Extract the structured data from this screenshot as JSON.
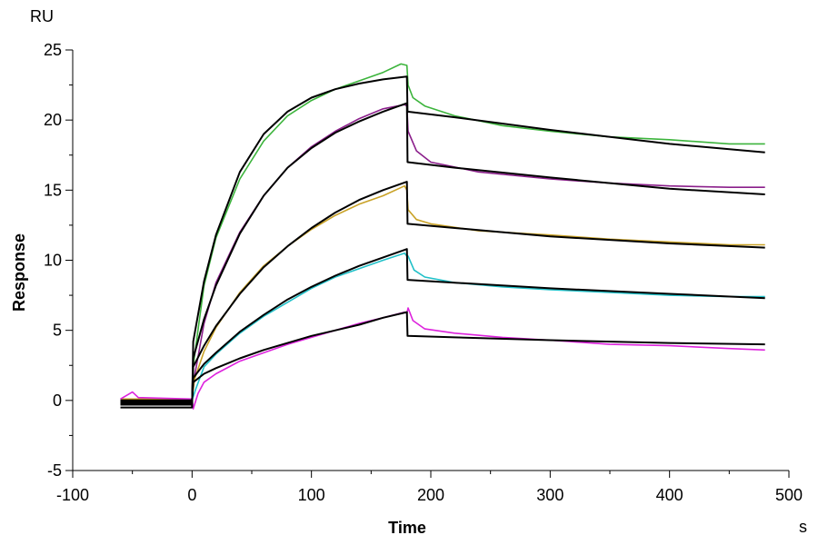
{
  "chart_data": {
    "type": "line",
    "title": "",
    "xlabel": "Time",
    "ylabel": "Response",
    "x_unit": "s",
    "y_unit": "RU",
    "xlim": [
      -100,
      500
    ],
    "ylim": [
      -5,
      25
    ],
    "x_ticks": [
      -100,
      0,
      100,
      200,
      300,
      400,
      500
    ],
    "y_ticks": [
      -5,
      0,
      5,
      10,
      15,
      20,
      25
    ],
    "x_tick_labels": [
      "-100",
      "0",
      "100",
      "200",
      "300",
      "400",
      "500"
    ],
    "y_tick_labels": [
      "-5",
      "0",
      "5",
      "10",
      "15",
      "20",
      "25"
    ],
    "grid": false,
    "legend": "none",
    "association_end_s": 180,
    "series": [
      {
        "color": "#3cb43c",
        "style": "measured",
        "points": [
          [
            -60,
            -0.2
          ],
          [
            0,
            -0.2
          ],
          [
            1,
            2.5
          ],
          [
            10,
            8.2
          ],
          [
            20,
            11.6
          ],
          [
            40,
            15.8
          ],
          [
            60,
            18.5
          ],
          [
            80,
            20.3
          ],
          [
            100,
            21.4
          ],
          [
            120,
            22.2
          ],
          [
            140,
            22.8
          ],
          [
            160,
            23.4
          ],
          [
            175,
            24.0
          ],
          [
            180,
            23.9
          ],
          [
            181,
            22.5
          ],
          [
            185,
            21.6
          ],
          [
            195,
            21.0
          ],
          [
            220,
            20.3
          ],
          [
            260,
            19.6
          ],
          [
            300,
            19.2
          ],
          [
            350,
            18.8
          ],
          [
            400,
            18.6
          ],
          [
            450,
            18.3
          ],
          [
            480,
            18.3
          ]
        ]
      },
      {
        "color": "#8b1f8b",
        "style": "measured",
        "points": [
          [
            -60,
            0.0
          ],
          [
            0,
            0.0
          ],
          [
            1,
            1.2
          ],
          [
            10,
            5.5
          ],
          [
            20,
            8.4
          ],
          [
            40,
            12.0
          ],
          [
            60,
            14.6
          ],
          [
            80,
            16.6
          ],
          [
            100,
            18.1
          ],
          [
            120,
            19.2
          ],
          [
            140,
            20.1
          ],
          [
            160,
            20.8
          ],
          [
            178,
            21.1
          ],
          [
            180,
            21.0
          ],
          [
            181,
            19.2
          ],
          [
            188,
            17.8
          ],
          [
            200,
            17.0
          ],
          [
            240,
            16.3
          ],
          [
            300,
            15.8
          ],
          [
            350,
            15.5
          ],
          [
            400,
            15.3
          ],
          [
            450,
            15.2
          ],
          [
            480,
            15.2
          ]
        ]
      },
      {
        "color": "#c9a227",
        "style": "measured",
        "points": [
          [
            -60,
            0.1
          ],
          [
            0,
            0.1
          ],
          [
            2,
            1.5
          ],
          [
            10,
            3.5
          ],
          [
            20,
            5.2
          ],
          [
            40,
            7.7
          ],
          [
            60,
            9.6
          ],
          [
            80,
            11.0
          ],
          [
            100,
            12.2
          ],
          [
            120,
            13.2
          ],
          [
            140,
            14.0
          ],
          [
            160,
            14.6
          ],
          [
            178,
            15.3
          ],
          [
            180,
            15.0
          ],
          [
            181,
            13.6
          ],
          [
            188,
            12.9
          ],
          [
            200,
            12.6
          ],
          [
            240,
            12.1
          ],
          [
            300,
            11.8
          ],
          [
            350,
            11.5
          ],
          [
            400,
            11.3
          ],
          [
            450,
            11.1
          ],
          [
            480,
            11.1
          ]
        ]
      },
      {
        "color": "#21c0c8",
        "style": "measured",
        "points": [
          [
            -60,
            0.0
          ],
          [
            0,
            0.0
          ],
          [
            3,
            0.8
          ],
          [
            10,
            2.4
          ],
          [
            20,
            3.3
          ],
          [
            40,
            4.8
          ],
          [
            60,
            6.0
          ],
          [
            80,
            7.0
          ],
          [
            100,
            8.0
          ],
          [
            120,
            8.8
          ],
          [
            140,
            9.4
          ],
          [
            160,
            10.0
          ],
          [
            178,
            10.5
          ],
          [
            180,
            10.3
          ],
          [
            181,
            10.3
          ],
          [
            186,
            9.3
          ],
          [
            195,
            8.8
          ],
          [
            220,
            8.4
          ],
          [
            260,
            8.1
          ],
          [
            300,
            7.9
          ],
          [
            350,
            7.7
          ],
          [
            400,
            7.5
          ],
          [
            450,
            7.4
          ],
          [
            480,
            7.4
          ]
        ]
      },
      {
        "color": "#dd22dd",
        "style": "measured",
        "points": [
          [
            -60,
            0.1
          ],
          [
            -50,
            0.6
          ],
          [
            -45,
            0.2
          ],
          [
            0,
            0.1
          ],
          [
            1,
            -0.6
          ],
          [
            5,
            0.5
          ],
          [
            10,
            1.3
          ],
          [
            20,
            1.9
          ],
          [
            40,
            2.8
          ],
          [
            60,
            3.4
          ],
          [
            80,
            4.0
          ],
          [
            100,
            4.5
          ],
          [
            120,
            5.0
          ],
          [
            140,
            5.5
          ],
          [
            160,
            5.9
          ],
          [
            178,
            6.3
          ],
          [
            180,
            6.2
          ],
          [
            181,
            6.6
          ],
          [
            185,
            5.7
          ],
          [
            195,
            5.1
          ],
          [
            220,
            4.8
          ],
          [
            260,
            4.5
          ],
          [
            300,
            4.3
          ],
          [
            350,
            4.0
          ],
          [
            400,
            3.9
          ],
          [
            450,
            3.7
          ],
          [
            480,
            3.6
          ]
        ]
      },
      {
        "color": "#000000",
        "style": "fit",
        "points": [
          [
            -60,
            -0.5
          ],
          [
            0,
            -0.5
          ],
          [
            1,
            4.2
          ],
          [
            10,
            8.5
          ],
          [
            20,
            11.8
          ],
          [
            40,
            16.3
          ],
          [
            60,
            19.0
          ],
          [
            80,
            20.6
          ],
          [
            100,
            21.6
          ],
          [
            120,
            22.2
          ],
          [
            140,
            22.6
          ],
          [
            160,
            22.9
          ],
          [
            180,
            23.1
          ],
          [
            180.5,
            20.6
          ],
          [
            220,
            20.2
          ],
          [
            300,
            19.3
          ],
          [
            400,
            18.3
          ],
          [
            480,
            17.7
          ]
        ]
      },
      {
        "color": "#000000",
        "style": "fit",
        "points": [
          [
            -60,
            -0.3
          ],
          [
            0,
            -0.3
          ],
          [
            1,
            3.0
          ],
          [
            10,
            5.8
          ],
          [
            20,
            8.2
          ],
          [
            40,
            11.9
          ],
          [
            60,
            14.6
          ],
          [
            80,
            16.6
          ],
          [
            100,
            18.0
          ],
          [
            120,
            19.1
          ],
          [
            140,
            19.9
          ],
          [
            160,
            20.6
          ],
          [
            180,
            21.2
          ],
          [
            180.5,
            17.0
          ],
          [
            220,
            16.6
          ],
          [
            300,
            15.9
          ],
          [
            400,
            15.1
          ],
          [
            480,
            14.7
          ]
        ]
      },
      {
        "color": "#000000",
        "style": "fit",
        "points": [
          [
            -60,
            -0.2
          ],
          [
            0,
            -0.2
          ],
          [
            1,
            2.4
          ],
          [
            10,
            3.9
          ],
          [
            20,
            5.3
          ],
          [
            40,
            7.6
          ],
          [
            60,
            9.5
          ],
          [
            80,
            11.0
          ],
          [
            100,
            12.3
          ],
          [
            120,
            13.4
          ],
          [
            140,
            14.3
          ],
          [
            160,
            15.0
          ],
          [
            180,
            15.6
          ],
          [
            180.5,
            12.6
          ],
          [
            220,
            12.3
          ],
          [
            300,
            11.7
          ],
          [
            400,
            11.2
          ],
          [
            480,
            10.9
          ]
        ]
      },
      {
        "color": "#000000",
        "style": "fit",
        "points": [
          [
            -60,
            -0.1
          ],
          [
            0,
            -0.1
          ],
          [
            1,
            1.6
          ],
          [
            10,
            2.6
          ],
          [
            20,
            3.4
          ],
          [
            40,
            4.9
          ],
          [
            60,
            6.1
          ],
          [
            80,
            7.2
          ],
          [
            100,
            8.1
          ],
          [
            120,
            8.9
          ],
          [
            140,
            9.6
          ],
          [
            160,
            10.2
          ],
          [
            180,
            10.8
          ],
          [
            180.5,
            8.6
          ],
          [
            220,
            8.4
          ],
          [
            300,
            8.0
          ],
          [
            400,
            7.6
          ],
          [
            480,
            7.3
          ]
        ]
      },
      {
        "color": "#000000",
        "style": "fit",
        "points": [
          [
            -60,
            0.0
          ],
          [
            0,
            0.0
          ],
          [
            1,
            1.3
          ],
          [
            10,
            1.9
          ],
          [
            20,
            2.3
          ],
          [
            40,
            3.0
          ],
          [
            60,
            3.6
          ],
          [
            80,
            4.1
          ],
          [
            100,
            4.6
          ],
          [
            120,
            5.0
          ],
          [
            140,
            5.4
          ],
          [
            160,
            5.9
          ],
          [
            180,
            6.3
          ],
          [
            180.5,
            4.6
          ],
          [
            220,
            4.5
          ],
          [
            300,
            4.3
          ],
          [
            400,
            4.1
          ],
          [
            480,
            4.0
          ]
        ]
      }
    ]
  }
}
